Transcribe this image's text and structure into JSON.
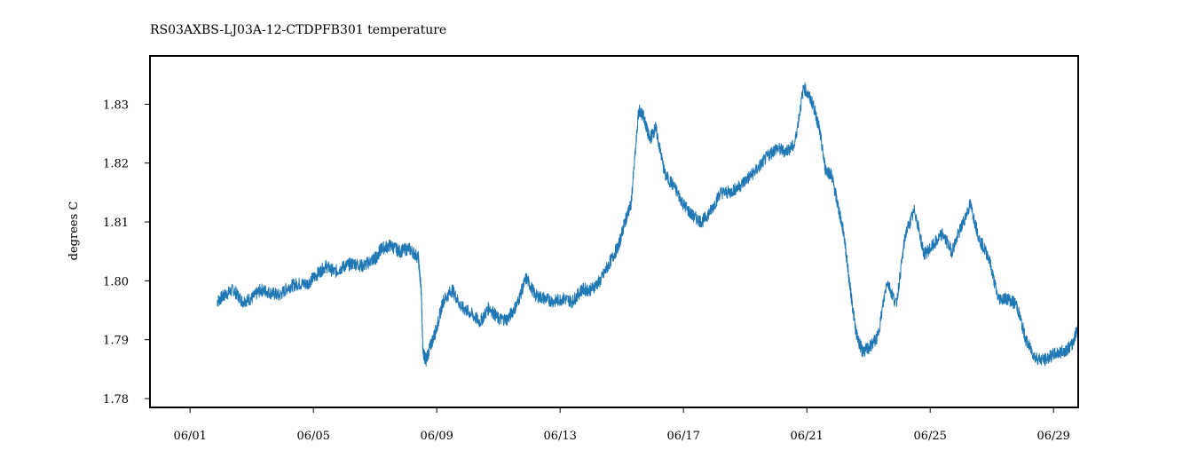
{
  "chart_data": {
    "type": "line",
    "title": "RS03AXBS-LJ03A-12-CTDPFB301 temperature",
    "xlabel": "",
    "ylabel": "degrees C",
    "x_unit": "day of June",
    "xlim": [
      -0.3,
      29.8
    ],
    "ylim": [
      1.7785,
      1.8382
    ],
    "x_ticks": [
      1,
      5,
      9,
      13,
      17,
      21,
      25,
      29
    ],
    "x_tick_labels": [
      "06/01",
      "06/05",
      "06/09",
      "06/13",
      "06/17",
      "06/21",
      "06/25",
      "06/29"
    ],
    "y_ticks": [
      1.78,
      1.79,
      1.8,
      1.81,
      1.82,
      1.83
    ],
    "y_tick_labels": [
      "1.78",
      "1.79",
      "1.80",
      "1.81",
      "1.82",
      "1.83"
    ],
    "grid": false,
    "legend": "none",
    "series": [
      {
        "color": "#1f77b4",
        "x": [
          1.88,
          2.1,
          2.4,
          2.7,
          3.0,
          3.3,
          3.6,
          3.9,
          4.2,
          4.5,
          4.8,
          5.1,
          5.4,
          5.7,
          6.0,
          6.3,
          6.6,
          6.9,
          7.05,
          7.2,
          7.5,
          7.8,
          8.1,
          8.4,
          8.5,
          8.55,
          8.65,
          8.8,
          9.0,
          9.2,
          9.5,
          9.8,
          10.1,
          10.4,
          10.7,
          11.0,
          11.3,
          11.6,
          11.9,
          12.2,
          12.5,
          12.8,
          13.1,
          13.4,
          13.7,
          14.0,
          14.3,
          14.6,
          14.9,
          15.1,
          15.3,
          15.55,
          15.7,
          15.9,
          16.1,
          16.4,
          16.7,
          17.0,
          17.3,
          17.6,
          17.9,
          18.2,
          18.5,
          18.8,
          19.1,
          19.4,
          19.7,
          20.0,
          20.3,
          20.6,
          20.9,
          21.2,
          21.4,
          21.6,
          21.8,
          22.0,
          22.2,
          22.4,
          22.6,
          22.8,
          23.0,
          23.3,
          23.6,
          23.9,
          24.2,
          24.5,
          24.8,
          25.1,
          25.4,
          25.7,
          26.0,
          26.3,
          26.6,
          26.9,
          27.2,
          27.5,
          27.8,
          28.1,
          28.4,
          28.7,
          29.0,
          29.3,
          29.6,
          29.8
        ],
        "y": [
          1.7965,
          1.7975,
          1.7985,
          1.7965,
          1.797,
          1.7985,
          1.798,
          1.7975,
          1.799,
          1.7995,
          1.7995,
          1.801,
          1.8025,
          1.8015,
          1.8025,
          1.803,
          1.8025,
          1.8035,
          1.804,
          1.8055,
          1.806,
          1.805,
          1.8055,
          1.804,
          1.798,
          1.788,
          1.7865,
          1.789,
          1.792,
          1.7965,
          1.7985,
          1.7955,
          1.7945,
          1.793,
          1.7955,
          1.7935,
          1.7935,
          1.796,
          1.8005,
          1.7975,
          1.797,
          1.7965,
          1.797,
          1.7965,
          1.7985,
          1.7985,
          1.8,
          1.803,
          1.806,
          1.81,
          1.813,
          1.829,
          1.828,
          1.824,
          1.826,
          1.818,
          1.816,
          1.813,
          1.811,
          1.81,
          1.812,
          1.815,
          1.815,
          1.816,
          1.8175,
          1.819,
          1.821,
          1.8225,
          1.822,
          1.823,
          1.833,
          1.83,
          1.826,
          1.819,
          1.818,
          1.813,
          1.808,
          1.799,
          1.791,
          1.788,
          1.7885,
          1.7905,
          1.8,
          1.796,
          1.808,
          1.812,
          1.8045,
          1.806,
          1.808,
          1.805,
          1.809,
          1.813,
          1.807,
          1.804,
          1.797,
          1.797,
          1.796,
          1.79,
          1.787,
          1.7865,
          1.7875,
          1.788,
          1.789,
          1.7925
        ]
      }
    ]
  }
}
